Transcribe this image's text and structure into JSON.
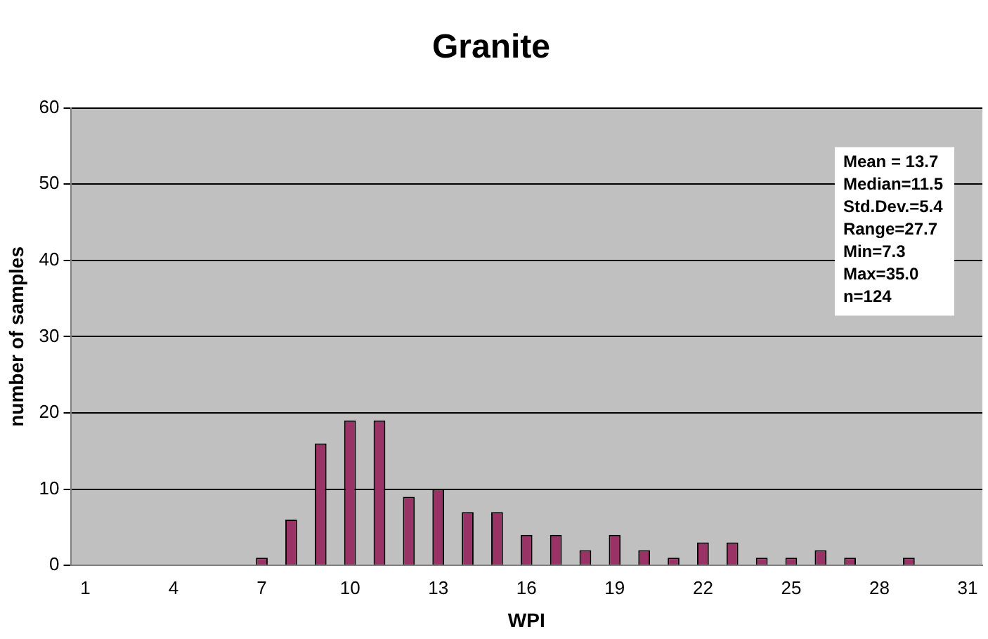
{
  "chart_data": {
    "type": "bar",
    "title": "Granite",
    "xlabel": "WPI",
    "ylabel": "number of samples",
    "categories": [
      "1",
      null,
      null,
      "4",
      null,
      null,
      "7",
      null,
      null,
      "10",
      null,
      null,
      "13",
      null,
      null,
      "16",
      null,
      null,
      "19",
      null,
      null,
      "22",
      null,
      null,
      "25",
      null,
      null,
      "28",
      null,
      null,
      "31"
    ],
    "values": [
      0,
      0,
      0,
      0,
      0,
      0,
      1,
      6,
      16,
      19,
      19,
      9,
      10,
      7,
      7,
      4,
      4,
      2,
      4,
      2,
      1,
      3,
      3,
      1,
      1,
      2,
      1,
      0,
      1,
      0,
      0
    ],
    "color": "#993366",
    "ylim": [
      0,
      60
    ],
    "yticks": [
      0,
      10,
      20,
      30,
      40,
      50,
      60
    ],
    "grid": "y",
    "legend": false,
    "annotations": [
      "Mean = 13.7\nMedian=11.5\nStd.Dev.=5.4\nRange=27.7\nMin=7.3\nMax=35.0\nn=124"
    ]
  }
}
